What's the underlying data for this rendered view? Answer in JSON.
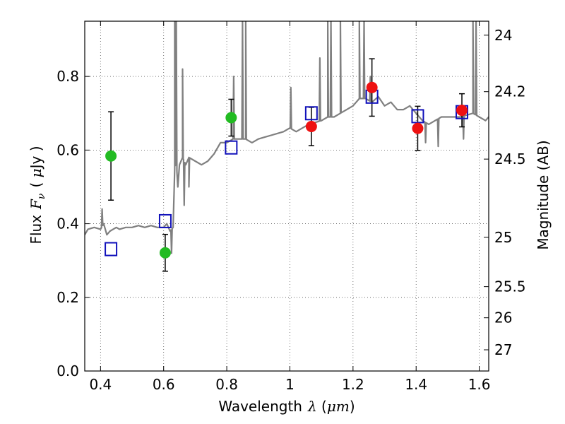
{
  "chart_data": {
    "type": "scatter",
    "xlabel": {
      "text": "Wavelength",
      "symbol": "λ",
      "unit_open": " (",
      "unit": "μm",
      "unit_close": ")"
    },
    "ylabel": {
      "text": "Flux",
      "symbol": "F",
      "subscript": "ν",
      "unit_open": "( ",
      "unit": "μ",
      "unit_rest": "Jy )"
    },
    "y2label": "Magnitude (AB)",
    "xlim": [
      0.35,
      1.63
    ],
    "ylim": [
      0.0,
      0.95
    ],
    "x_ticks": [
      0.4,
      0.6,
      0.8,
      1.0,
      1.2,
      1.4,
      1.6
    ],
    "x_tick_labels": [
      "0.4",
      "0.6",
      "0.8",
      "1",
      "1.2",
      "1.4",
      "1.6"
    ],
    "y_ticks": [
      0.0,
      0.2,
      0.4,
      0.6,
      0.8
    ],
    "y_tick_labels": [
      "0.0",
      "0.2",
      "0.4",
      "0.6",
      "0.8"
    ],
    "y2_ticks": [
      {
        "label": "24",
        "mag": 24.0
      },
      {
        "label": "24.2",
        "mag": 24.2
      },
      {
        "label": "24.5",
        "mag": 24.5
      },
      {
        "label": "25",
        "mag": 25.0
      },
      {
        "label": "25.5",
        "mag": 25.5
      },
      {
        "label": "26",
        "mag": 26.0
      },
      {
        "label": "27",
        "mag": 27.0
      }
    ],
    "grid": true,
    "colors": {
      "spectrum": "#808080",
      "green": "#22bb22",
      "red": "#ee1111",
      "model": "#1111bb",
      "errorbar": "#000000"
    },
    "spectrum": {
      "x": [
        0.35,
        0.36,
        0.38,
        0.4,
        0.41,
        0.42,
        0.43,
        0.44,
        0.45,
        0.46,
        0.48,
        0.5,
        0.52,
        0.54,
        0.56,
        0.58,
        0.6,
        0.61,
        0.62,
        0.63,
        0.635,
        0.64,
        0.645,
        0.65,
        0.66,
        0.67,
        0.68,
        0.7,
        0.72,
        0.74,
        0.76,
        0.78,
        0.8,
        0.82,
        0.84,
        0.86,
        0.88,
        0.9,
        0.92,
        0.94,
        0.96,
        0.98,
        1.0,
        1.02,
        1.04,
        1.06,
        1.08,
        1.1,
        1.12,
        1.14,
        1.16,
        1.18,
        1.2,
        1.22,
        1.24,
        1.26,
        1.28,
        1.3,
        1.32,
        1.34,
        1.36,
        1.38,
        1.4,
        1.42,
        1.44,
        1.46,
        1.48,
        1.5,
        1.52,
        1.54,
        1.56,
        1.58,
        1.6,
        1.62,
        1.63
      ],
      "y": [
        0.37,
        0.385,
        0.39,
        0.385,
        0.4,
        0.37,
        0.38,
        0.385,
        0.39,
        0.385,
        0.39,
        0.39,
        0.395,
        0.39,
        0.395,
        0.39,
        0.39,
        0.4,
        0.38,
        0.39,
        0.55,
        0.57,
        0.5,
        0.56,
        0.58,
        0.56,
        0.58,
        0.57,
        0.56,
        0.57,
        0.59,
        0.62,
        0.62,
        0.63,
        0.63,
        0.63,
        0.62,
        0.63,
        0.635,
        0.64,
        0.645,
        0.65,
        0.66,
        0.65,
        0.66,
        0.67,
        0.675,
        0.68,
        0.69,
        0.69,
        0.7,
        0.71,
        0.72,
        0.74,
        0.74,
        0.73,
        0.745,
        0.72,
        0.73,
        0.71,
        0.71,
        0.72,
        0.7,
        0.68,
        0.67,
        0.68,
        0.69,
        0.69,
        0.69,
        0.69,
        0.695,
        0.7,
        0.69,
        0.68,
        0.69
      ],
      "spikes": [
        {
          "x": 0.405,
          "y": 0.44
        },
        {
          "x": 0.635,
          "y": 0.95
        },
        {
          "x": 0.64,
          "y": 0.95
        },
        {
          "x": 0.66,
          "y": 0.82
        },
        {
          "x": 0.822,
          "y": 0.8
        },
        {
          "x": 0.85,
          "y": 0.95
        },
        {
          "x": 0.86,
          "y": 0.95
        },
        {
          "x": 1.003,
          "y": 0.77
        },
        {
          "x": 1.095,
          "y": 0.85
        },
        {
          "x": 1.12,
          "y": 0.95
        },
        {
          "x": 1.13,
          "y": 0.95
        },
        {
          "x": 1.16,
          "y": 0.95
        },
        {
          "x": 1.22,
          "y": 0.95
        },
        {
          "x": 1.235,
          "y": 0.95
        },
        {
          "x": 1.255,
          "y": 0.8
        },
        {
          "x": 1.58,
          "y": 0.95
        },
        {
          "x": 1.59,
          "y": 0.95
        }
      ],
      "dips": [
        {
          "x": 0.625,
          "y": 0.32
        },
        {
          "x": 0.665,
          "y": 0.45
        },
        {
          "x": 0.68,
          "y": 0.5
        },
        {
          "x": 1.43,
          "y": 0.62
        },
        {
          "x": 1.47,
          "y": 0.61
        },
        {
          "x": 1.55,
          "y": 0.63
        }
      ]
    },
    "series": [
      {
        "marker": "circle",
        "color": "#22bb22",
        "points": [
          {
            "x": 0.433,
            "y": 0.584,
            "err": 0.12
          },
          {
            "x": 0.605,
            "y": 0.321,
            "err": 0.05
          },
          {
            "x": 0.814,
            "y": 0.688,
            "err": 0.05
          }
        ]
      },
      {
        "marker": "circle",
        "color": "#ee1111",
        "points": [
          {
            "x": 1.068,
            "y": 0.664,
            "err": 0.052
          },
          {
            "x": 1.26,
            "y": 0.77,
            "err": 0.078
          },
          {
            "x": 1.405,
            "y": 0.659,
            "err": 0.06
          },
          {
            "x": 1.545,
            "y": 0.708,
            "err": 0.045
          }
        ]
      },
      {
        "marker": "open-square",
        "color": "#1111bb",
        "points": [
          {
            "x": 0.433,
            "y": 0.331
          },
          {
            "x": 0.605,
            "y": 0.407
          },
          {
            "x": 0.814,
            "y": 0.607
          },
          {
            "x": 1.068,
            "y": 0.7
          },
          {
            "x": 1.26,
            "y": 0.745
          },
          {
            "x": 1.405,
            "y": 0.692
          },
          {
            "x": 1.545,
            "y": 0.703
          }
        ]
      }
    ]
  }
}
